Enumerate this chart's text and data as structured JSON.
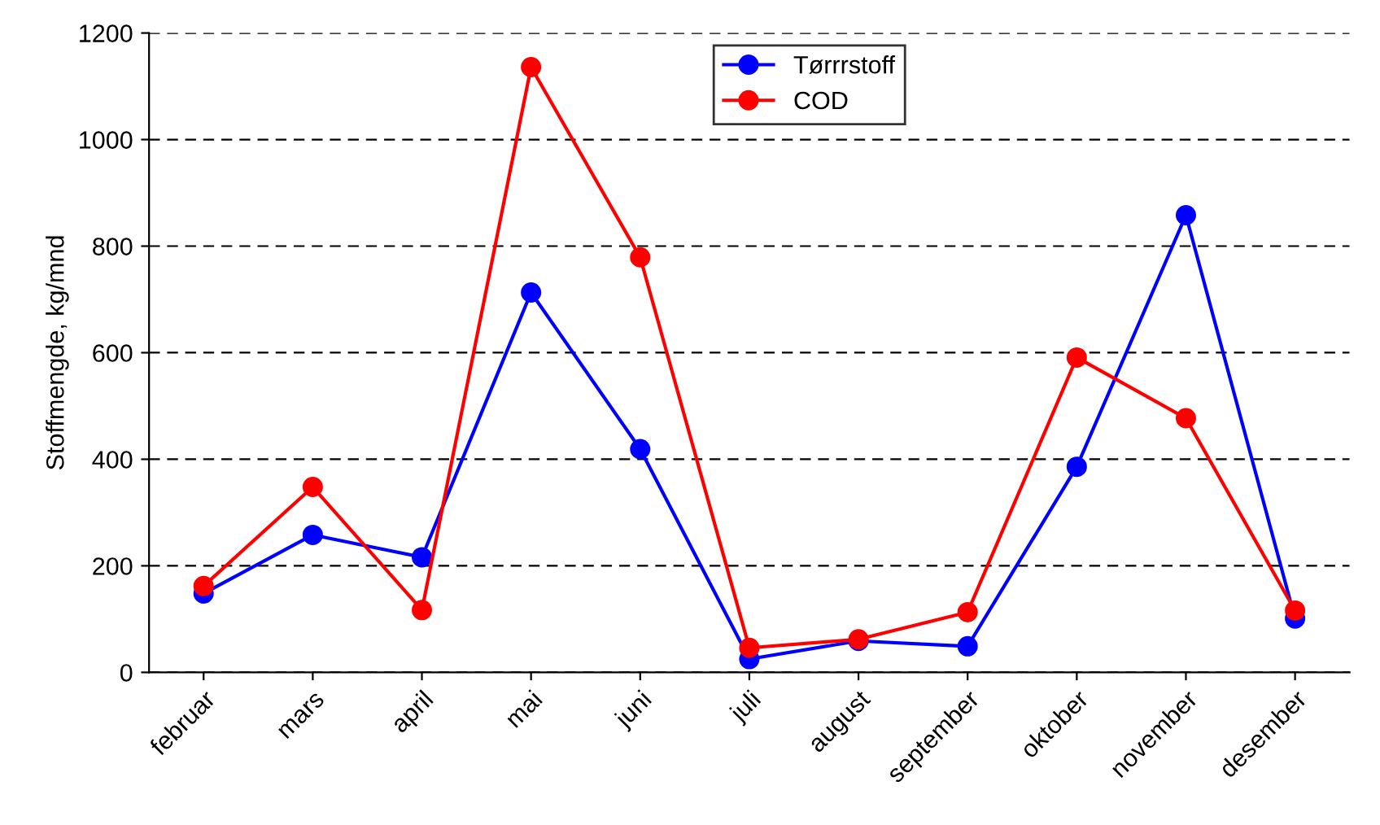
{
  "chart_data": {
    "type": "line",
    "ylabel": "Stoffmengde, kg/mnd",
    "categories": [
      "februar",
      "mars",
      "april",
      "mai",
      "juni",
      "juli",
      "august",
      "september",
      "oktober",
      "november",
      "desember"
    ],
    "series": [
      {
        "name": "Tørrrstoff",
        "color": "#0000ff",
        "values": [
          148,
          258,
          216,
          713,
          419,
          25,
          59,
          49,
          386,
          858,
          101
        ]
      },
      {
        "name": "COD",
        "color": "#ff0000",
        "values": [
          162,
          348,
          117,
          1136,
          779,
          46,
          62,
          113,
          591,
          477,
          116
        ]
      }
    ],
    "ylim": [
      0,
      1200
    ],
    "yticks": [
      0,
      200,
      400,
      600,
      800,
      1000,
      1200
    ],
    "grid": "y",
    "legend": "top",
    "marker": "circle",
    "line_style": "solid"
  }
}
